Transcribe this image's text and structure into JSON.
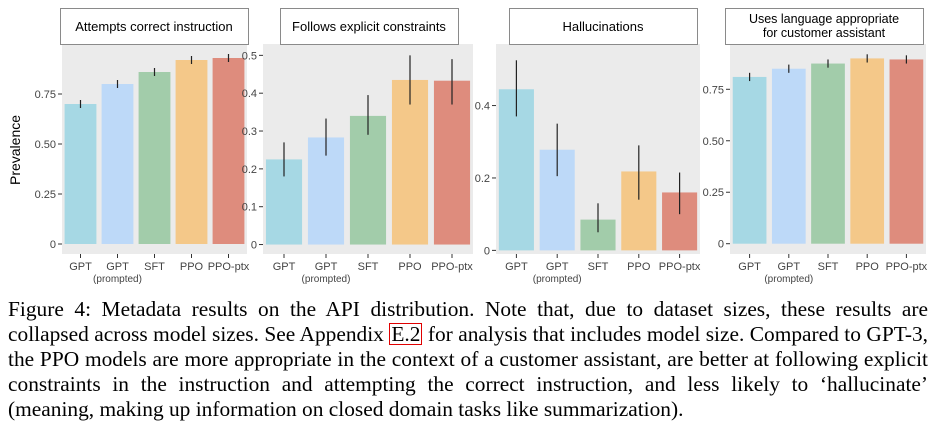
{
  "figure": {
    "ylabel": "Prevalence",
    "colors": [
      "#a6d8e4",
      "#bdd9f8",
      "#a2ccaa",
      "#f4c889",
      "#de8c7d"
    ]
  },
  "chart_data": [
    {
      "type": "bar",
      "title": "Attempts correct instruction",
      "categories": [
        "GPT",
        "GPT (prompted)",
        "SFT",
        "PPO",
        "PPO-ptx"
      ],
      "tick_labels": [
        "GPT",
        "GPT",
        "SFT",
        "PPO",
        "PPO-ptx"
      ],
      "tick_sublabel": "(prompted)",
      "values": [
        0.7,
        0.8,
        0.86,
        0.92,
        0.93
      ],
      "error": [
        [
          0.68,
          0.72
        ],
        [
          0.78,
          0.82
        ],
        [
          0.84,
          0.88
        ],
        [
          0.9,
          0.94
        ],
        [
          0.91,
          0.95
        ]
      ],
      "ylim": [
        -0.05,
        1.0
      ],
      "yticks": [
        0,
        0.25,
        0.5,
        0.75
      ],
      "ytick_labels": [
        "0",
        "0.25",
        "0.50",
        "0.75"
      ],
      "ylabel": "Prevalence"
    },
    {
      "type": "bar",
      "title": "Follows explicit constraints",
      "categories": [
        "GPT",
        "GPT (prompted)",
        "SFT",
        "PPO",
        "PPO-ptx"
      ],
      "tick_labels": [
        "GPT",
        "GPT",
        "SFT",
        "PPO",
        "PPO-ptx"
      ],
      "tick_sublabel": "(prompted)",
      "values": [
        0.225,
        0.283,
        0.34,
        0.435,
        0.433
      ],
      "error": [
        [
          0.18,
          0.27
        ],
        [
          0.235,
          0.333
        ],
        [
          0.29,
          0.395
        ],
        [
          0.37,
          0.5
        ],
        [
          0.37,
          0.49
        ]
      ],
      "ylim": [
        -0.025,
        0.53
      ],
      "yticks": [
        0,
        0.1,
        0.2,
        0.3,
        0.4,
        0.5
      ],
      "ytick_labels": [
        "0",
        "0.1",
        "0.2",
        "0.3",
        "0.4",
        "0.5"
      ]
    },
    {
      "type": "bar",
      "title": "Hallucinations",
      "categories": [
        "GPT",
        "GPT (prompted)",
        "SFT",
        "PPO",
        "PPO-ptx"
      ],
      "tick_labels": [
        "GPT",
        "GPT",
        "SFT",
        "PPO",
        "PPO-ptx"
      ],
      "tick_sublabel": "(prompted)",
      "values": [
        0.445,
        0.278,
        0.085,
        0.218,
        0.16
      ],
      "error": [
        [
          0.37,
          0.525
        ],
        [
          0.205,
          0.35
        ],
        [
          0.05,
          0.13
        ],
        [
          0.14,
          0.29
        ],
        [
          0.1,
          0.215
        ]
      ],
      "ylim": [
        -0.01,
        0.57
      ],
      "yticks": [
        0,
        0.2,
        0.4
      ],
      "ytick_labels": [
        "0",
        "0.2",
        "0.4"
      ]
    },
    {
      "type": "bar",
      "title": "Uses language appropriate for customer assistant",
      "title_lines": [
        "Uses language appropriate",
        "for customer assistant"
      ],
      "categories": [
        "GPT",
        "GPT (prompted)",
        "SFT",
        "PPO",
        "PPO-ptx"
      ],
      "tick_labels": [
        "GPT",
        "GPT",
        "SFT",
        "PPO",
        "PPO-ptx"
      ],
      "tick_sublabel": "(prompted)",
      "values": [
        0.81,
        0.85,
        0.875,
        0.9,
        0.895
      ],
      "error": [
        [
          0.79,
          0.83
        ],
        [
          0.83,
          0.87
        ],
        [
          0.855,
          0.895
        ],
        [
          0.88,
          0.92
        ],
        [
          0.875,
          0.915
        ]
      ],
      "ylim": [
        -0.05,
        0.97
      ],
      "yticks": [
        0,
        0.25,
        0.5,
        0.75
      ],
      "ytick_labels": [
        "0",
        "0.25",
        "0.50",
        "0.75"
      ]
    }
  ],
  "caption": {
    "before_ref": "Figure 4: Metadata results on the API distribution. Note that, due to dataset sizes, these results are collapsed across model sizes. See Appendix ",
    "ref": "E.2",
    "after_ref": " for analysis that includes model size. Compared to GPT-3, the PPO models are more appropriate in the context of a customer assistant, are better at following explicit constraints in the instruction and attempting the correct instruction, and less likely to ‘hallucinate’ (meaning, making up information on closed domain tasks like summarization)."
  }
}
